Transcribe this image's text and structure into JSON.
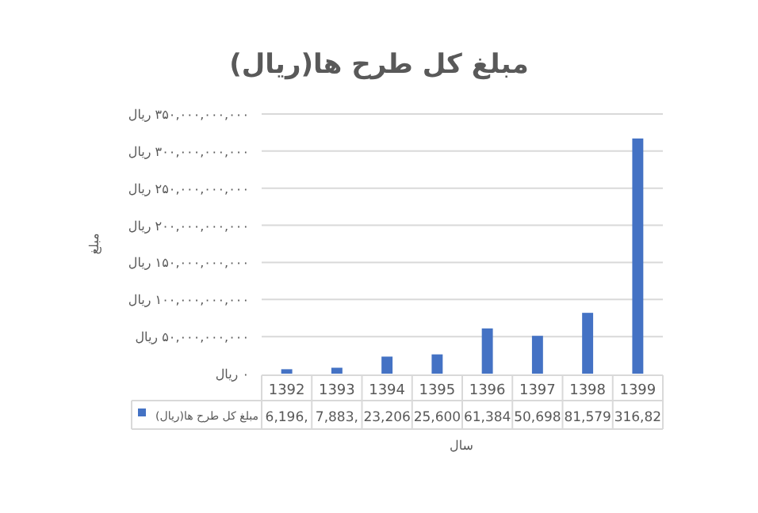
{
  "chart_data": {
    "type": "bar",
    "title": "مبلغ کل طرح ها(ریال)",
    "xlabel": "سال",
    "ylabel": "مبلغ",
    "categories": [
      "1392",
      "1393",
      "1394",
      "1395",
      "1396",
      "1397",
      "1398",
      "1399"
    ],
    "series": [
      {
        "name": "مبلغ کل طرح ها(ریال)",
        "color": "#4472c4",
        "values": [
          6000000000,
          8000000000,
          23000000000,
          26000000000,
          61000000000,
          51000000000,
          82000000000,
          317000000000
        ]
      }
    ],
    "annotations": [
      "6,196,",
      "7,883,",
      "23,206",
      "25,600",
      "61,384",
      "50,698",
      "81,579",
      "316,82"
    ],
    "ylim": [
      0,
      350000000000
    ],
    "yticks": [
      {
        "value": 0,
        "label": "۰ ریال"
      },
      {
        "value": 50000000000,
        "label": "۵۰,۰۰۰,۰۰۰,۰۰۰ ریال"
      },
      {
        "value": 100000000000,
        "label": "۱۰۰,۰۰۰,۰۰۰,۰۰۰ ریال"
      },
      {
        "value": 150000000000,
        "label": "۱۵۰,۰۰۰,۰۰۰,۰۰۰ ریال"
      },
      {
        "value": 200000000000,
        "label": "۲۰۰,۰۰۰,۰۰۰,۰۰۰ ریال"
      },
      {
        "value": 250000000000,
        "label": "۲۵۰,۰۰۰,۰۰۰,۰۰۰ ریال"
      },
      {
        "value": 300000000000,
        "label": "۳۰۰,۰۰۰,۰۰۰,۰۰۰ ریال"
      },
      {
        "value": 350000000000,
        "label": "۳۵۰,۰۰۰,۰۰۰,۰۰۰ ریال"
      }
    ],
    "grid": "y",
    "legend": "bottom"
  }
}
